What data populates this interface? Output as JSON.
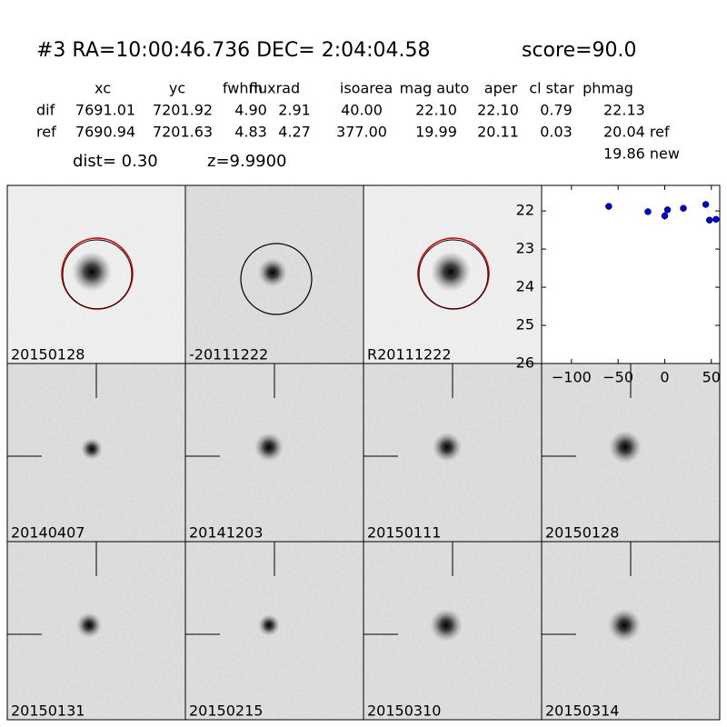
{
  "header": {
    "title": "#3   RA=10:00:46.736 DEC= 2:04:04.58",
    "score": "score=90.0"
  },
  "table": {
    "columns": [
      "xc",
      "yc",
      "fwhm",
      "fluxrad",
      "isoarea",
      "mag auto",
      "aper",
      "cl star",
      "phmag"
    ],
    "rows": [
      [
        "dif",
        "7691.01",
        "7201.92",
        "4.90",
        "2.91",
        "40.00",
        "22.10",
        "22.10",
        "0.79",
        "22.13"
      ],
      [
        "ref",
        "7690.94",
        "7201.63",
        "4.83",
        "4.27",
        "377.00",
        "19.99",
        "20.11",
        "0.03",
        "20.04 ref"
      ]
    ],
    "extra": "19.86 new",
    "dist": "dist=  0.30",
    "z": "z=9.9900"
  },
  "panels": [
    {
      "label": "20150128"
    },
    {
      "label": "-20111222"
    },
    {
      "label": "R20111222"
    },
    {
      "label": "20140407"
    },
    {
      "label": "20141203"
    },
    {
      "label": "20150111"
    },
    {
      "label": "20150128",
      "color": "#ff0000"
    },
    {
      "label": "20150131"
    },
    {
      "label": "20150215"
    },
    {
      "label": "20150310"
    },
    {
      "label": "20150314"
    }
  ],
  "chart_data": {
    "type": "scatter",
    "color": "#0000cc",
    "x": [
      -60,
      -18,
      0,
      3,
      20,
      44,
      48,
      55
    ],
    "values": [
      21.88,
      22.02,
      22.13,
      21.97,
      21.93,
      21.83,
      22.24,
      22.22
    ],
    "errors": [
      0.05,
      0.05,
      0.1,
      0.06,
      0.05,
      0.05,
      0.06,
      0.08
    ],
    "xlim": [
      -132,
      59
    ],
    "ylim": [
      26,
      21.33
    ],
    "xticks": [
      {
        "value": -100,
        "label": "−100"
      },
      {
        "value": -50,
        "label": "−50"
      },
      0,
      50
    ],
    "yticks": [
      22,
      23,
      24,
      25,
      26
    ]
  }
}
